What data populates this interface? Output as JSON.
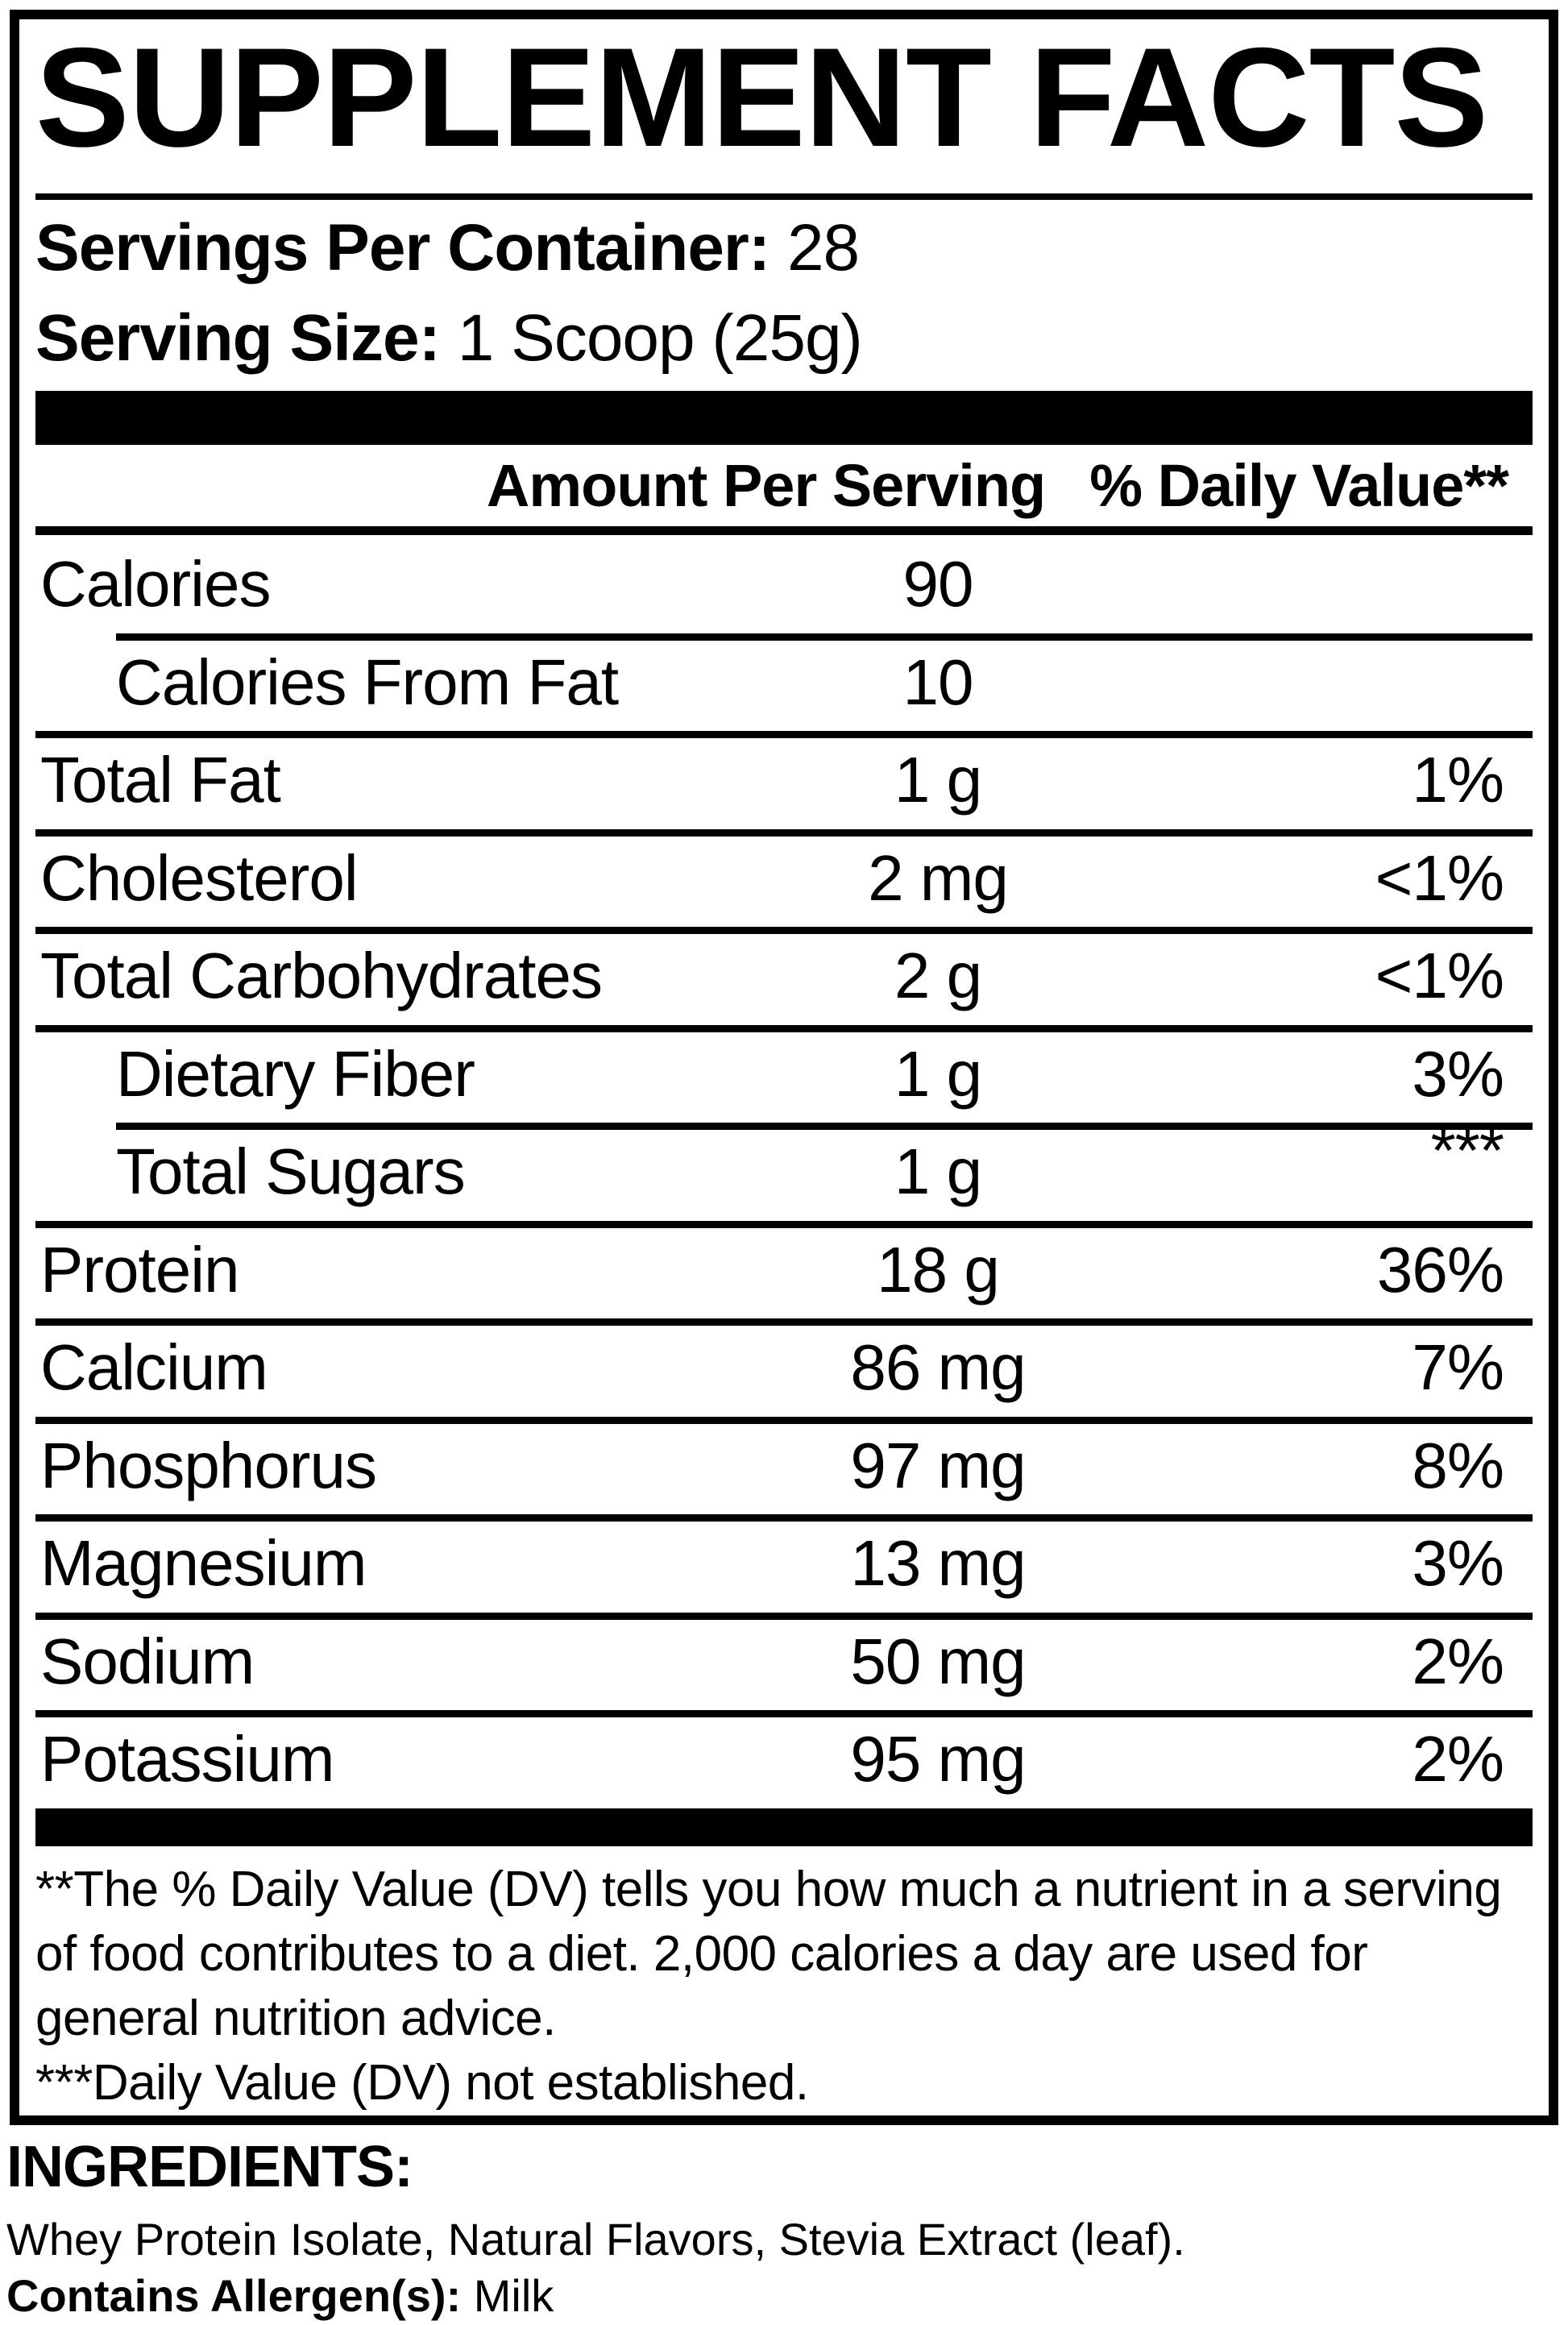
{
  "title": "SUPPLEMENT FACTS",
  "servings": {
    "label": "Servings Per Container:",
    "value": "28"
  },
  "serving_size": {
    "label": "Serving Size:",
    "value": "1 Scoop (25g)"
  },
  "table": {
    "header": {
      "amount": "Amount Per Serving",
      "dv": "% Daily Value**"
    },
    "rows": [
      {
        "name": "Calories",
        "amount": "90",
        "dv": "",
        "indent": false,
        "sep": "none"
      },
      {
        "name": "Calories From Fat",
        "amount": "10",
        "dv": "",
        "indent": true,
        "sep": "indent"
      },
      {
        "name": "Total Fat",
        "amount": "1 g",
        "dv": "1%",
        "indent": false,
        "sep": "full"
      },
      {
        "name": "Cholesterol",
        "amount": "2 mg",
        "dv": "<1%",
        "indent": false,
        "sep": "full"
      },
      {
        "name": "Total Carbohydrates",
        "amount": "2 g",
        "dv": "<1%",
        "indent": false,
        "sep": "full"
      },
      {
        "name": "Dietary Fiber",
        "amount": "1 g",
        "dv": "3%",
        "indent": true,
        "sep": "full"
      },
      {
        "name": "Total Sugars",
        "amount": "1 g",
        "dv": "***",
        "indent": true,
        "sep": "indent",
        "dv_raised": true
      },
      {
        "name": "Protein",
        "amount": "18 g",
        "dv": "36%",
        "indent": false,
        "sep": "full"
      },
      {
        "name": "Calcium",
        "amount": "86 mg",
        "dv": "7%",
        "indent": false,
        "sep": "full"
      },
      {
        "name": "Phosphorus",
        "amount": "97 mg",
        "dv": "8%",
        "indent": false,
        "sep": "full"
      },
      {
        "name": "Magnesium",
        "amount": "13 mg",
        "dv": "3%",
        "indent": false,
        "sep": "full"
      },
      {
        "name": "Sodium",
        "amount": "50 mg",
        "dv": "2%",
        "indent": false,
        "sep": "full"
      },
      {
        "name": "Potassium",
        "amount": "95 mg",
        "dv": "2%",
        "indent": false,
        "sep": "full"
      }
    ]
  },
  "footnotes": {
    "dv_note": "**The % Daily Value (DV) tells you how much a nutrient in a serving of food contributes to a diet. 2,000 calories a day are used for general nutrition advice.",
    "not_established_note": "***Daily Value (DV) not established."
  },
  "ingredients": {
    "heading": "INGREDIENTS:",
    "list": "Whey Protein Isolate, Natural Flavors, Stevia Extract (leaf).",
    "allergen_label": "Contains Allergen(s):",
    "allergen_value": "Milk"
  },
  "colors": {
    "ink": "#000000",
    "paper": "#ffffff"
  }
}
